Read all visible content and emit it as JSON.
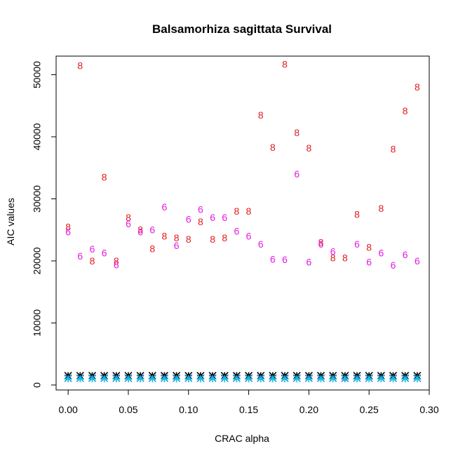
{
  "chart_data": {
    "type": "scatter",
    "title": "Balsamorhiza sagittata Survival",
    "xlabel": "CRAC alpha",
    "ylabel": "AIC values",
    "xlim": [
      -0.01,
      0.3
    ],
    "ylim": [
      -800,
      53000
    ],
    "x_ticks": [
      0.0,
      0.05,
      0.1,
      0.15,
      0.2,
      0.25,
      0.3
    ],
    "x_tick_labels": [
      "0.00",
      "0.05",
      "0.10",
      "0.15",
      "0.20",
      "0.25",
      "0.30"
    ],
    "y_ticks": [
      0,
      10000,
      20000,
      30000,
      40000,
      50000
    ],
    "y_tick_labels": [
      "0",
      "10000",
      "20000",
      "30000",
      "40000",
      "50000"
    ],
    "grid": false,
    "x": [
      0.0,
      0.01,
      0.02,
      0.03,
      0.04,
      0.05,
      0.06,
      0.07,
      0.08,
      0.09,
      0.1,
      0.11,
      0.12,
      0.13,
      0.14,
      0.15,
      0.16,
      0.17,
      0.18,
      0.19,
      0.2,
      0.21,
      0.22,
      0.23,
      0.24,
      0.25,
      0.26,
      0.27,
      0.28,
      0.29
    ],
    "series": [
      {
        "symbol": "8",
        "color": "#e31a1c",
        "values": [
          25500,
          51500,
          20000,
          33500,
          20000,
          27000,
          25000,
          22000,
          24000,
          23700,
          23500,
          26300,
          23500,
          23700,
          28000,
          28000,
          43500,
          38300,
          51700,
          40700,
          38200,
          23000,
          20500,
          20500,
          27500,
          22200,
          28500,
          38000,
          44200,
          48000
        ]
      },
      {
        "symbol": "6",
        "color": "#e619e6",
        "values": [
          24700,
          20800,
          21900,
          21300,
          19400,
          26000,
          24700,
          25000,
          28700,
          22500,
          26700,
          28300,
          27000,
          27000,
          24800,
          24000,
          22700,
          20300,
          20200,
          34000,
          19800,
          22700,
          21500,
          1200,
          22700,
          19800,
          21300,
          19300,
          21000,
          20000
        ]
      },
      {
        "symbol": "*",
        "color": "#000000",
        "values": [
          1500,
          1500,
          1500,
          1500,
          1500,
          1500,
          1500,
          1500,
          1500,
          1500,
          1500,
          1500,
          1500,
          1500,
          1500,
          1500,
          1500,
          1500,
          1500,
          1500,
          1500,
          1500,
          1500,
          1500,
          1500,
          1500,
          1500,
          1500,
          1500,
          1500
        ]
      },
      {
        "symbol": "x",
        "color": "#1e90ff",
        "values": [
          1100,
          1100,
          1100,
          1100,
          1100,
          1100,
          1100,
          1100,
          1100,
          1100,
          1100,
          1100,
          1100,
          1100,
          1100,
          1100,
          1100,
          1100,
          1100,
          1100,
          1100,
          1100,
          1100,
          1100,
          1100,
          1100,
          1100,
          1100,
          1100,
          1100
        ]
      },
      {
        "symbol": "+",
        "color": "#00c8c8",
        "values": [
          1000,
          1000,
          1000,
          1000,
          1000,
          1000,
          1000,
          1000,
          1000,
          1000,
          1000,
          1000,
          1000,
          1000,
          1000,
          1000,
          1000,
          1000,
          1000,
          1000,
          1000,
          1000,
          1000,
          1000,
          1000,
          1000,
          1000,
          1000,
          1000,
          1000
        ]
      }
    ]
  }
}
